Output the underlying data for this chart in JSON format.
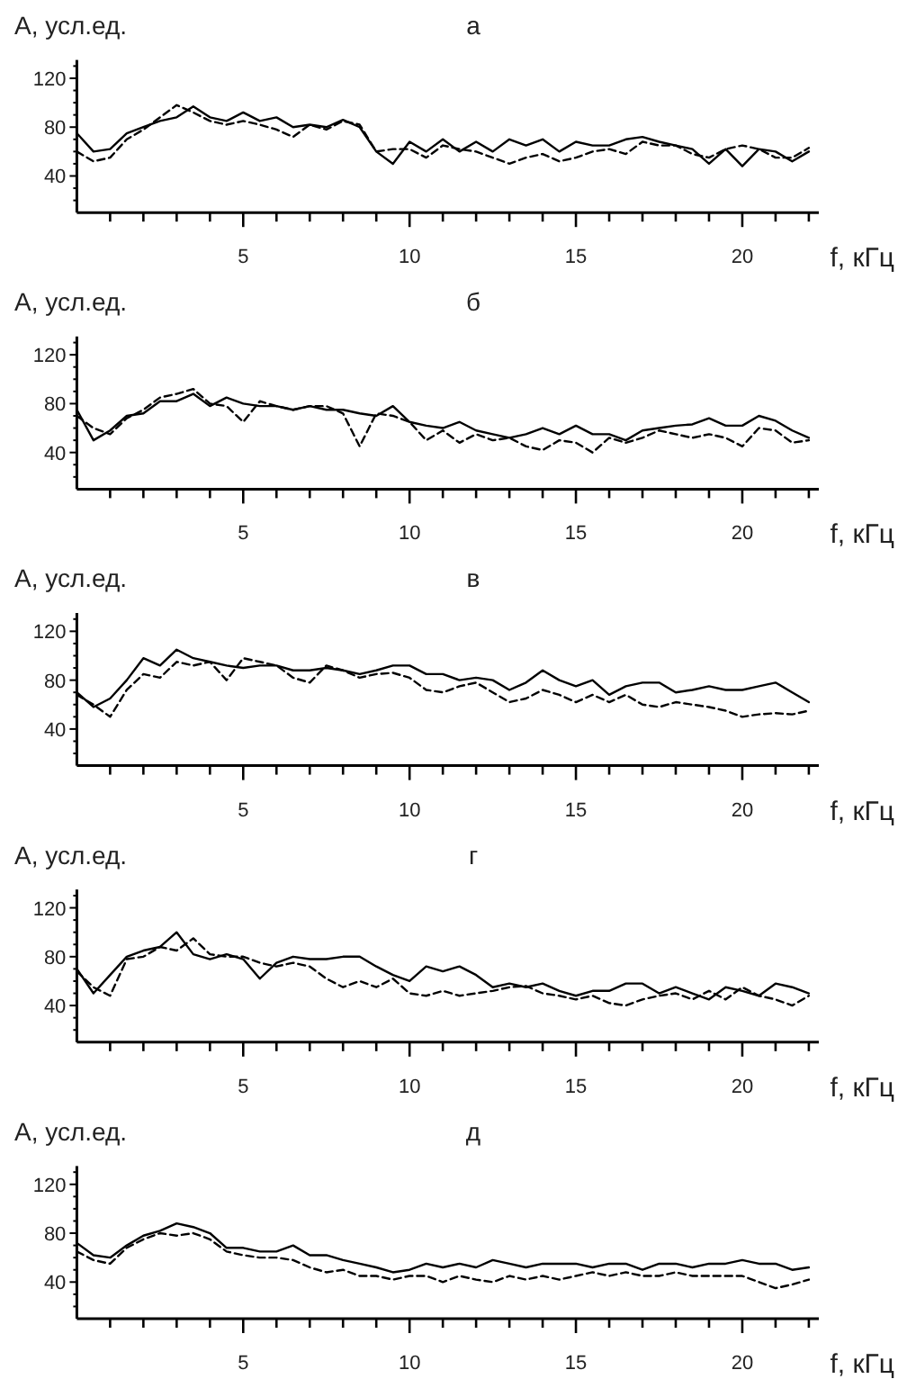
{
  "chart_data": [
    {
      "type": "line",
      "title": "а",
      "xlabel": "f, кГц",
      "ylabel": "A, усл.ед.",
      "xlim": [
        0,
        22.3
      ],
      "ylim": [
        10,
        135
      ],
      "xticks": [
        {
          "value": 1,
          "label": null
        },
        {
          "value": 2,
          "label": null
        },
        {
          "value": 3,
          "label": null
        },
        {
          "value": 4,
          "label": null
        },
        5,
        {
          "value": 6,
          "label": null
        },
        {
          "value": 7,
          "label": null
        },
        {
          "value": 8,
          "label": null
        },
        {
          "value": 9,
          "label": null
        },
        10,
        {
          "value": 11,
          "label": null
        },
        {
          "value": 12,
          "label": null
        },
        {
          "value": 13,
          "label": null
        },
        {
          "value": 14,
          "label": null
        },
        15,
        {
          "value": 16,
          "label": null
        },
        {
          "value": 17,
          "label": null
        },
        {
          "value": 18,
          "label": null
        },
        {
          "value": 19,
          "label": null
        },
        20,
        {
          "value": 21,
          "label": null
        },
        {
          "value": 22,
          "label": null
        }
      ],
      "yticks": [
        {
          "value": 20,
          "label": null
        },
        {
          "value": 30,
          "label": null
        },
        40,
        {
          "value": 50,
          "label": null
        },
        {
          "value": 60,
          "label": null
        },
        {
          "value": 70,
          "label": null
        },
        80,
        {
          "value": 90,
          "label": null
        },
        {
          "value": 100,
          "label": null
        },
        {
          "value": 110,
          "label": null
        },
        120,
        {
          "value": 130,
          "label": null
        }
      ],
      "x": [
        0,
        0.5,
        1,
        1.5,
        2,
        2.5,
        3,
        3.5,
        4,
        4.5,
        5,
        5.5,
        6,
        6.5,
        7,
        7.5,
        8,
        8.5,
        9,
        9.5,
        10,
        10.5,
        11,
        11.5,
        12,
        12.5,
        13,
        13.5,
        14,
        14.5,
        15,
        15.5,
        16,
        16.5,
        17,
        17.5,
        18,
        18.5,
        19,
        19.5,
        20,
        20.5,
        21,
        21.5,
        22
      ],
      "series": [
        {
          "color": "#000000",
          "line_style": "solid",
          "values": [
            75,
            60,
            62,
            75,
            80,
            85,
            88,
            97,
            88,
            85,
            92,
            85,
            88,
            80,
            82,
            80,
            86,
            80,
            60,
            50,
            68,
            60,
            70,
            60,
            68,
            60,
            70,
            65,
            70,
            60,
            68,
            65,
            65,
            70,
            72,
            68,
            65,
            62,
            50,
            62,
            48,
            62,
            60,
            52,
            60
          ]
        },
        {
          "color": "#000000",
          "line_style": "dashed",
          "values": [
            60,
            52,
            55,
            70,
            78,
            88,
            98,
            92,
            85,
            82,
            85,
            82,
            78,
            72,
            82,
            78,
            85,
            82,
            60,
            62,
            62,
            55,
            65,
            62,
            60,
            55,
            50,
            55,
            58,
            52,
            55,
            60,
            62,
            58,
            68,
            65,
            65,
            58,
            55,
            62,
            65,
            62,
            55,
            55,
            63
          ]
        }
      ]
    },
    {
      "type": "line",
      "title": "б",
      "xlabel": "f, кГц",
      "ylabel": "A, усл.ед.",
      "xlim": [
        0,
        22.3
      ],
      "ylim": [
        10,
        135
      ],
      "xticks": [
        {
          "value": 1,
          "label": null
        },
        {
          "value": 2,
          "label": null
        },
        {
          "value": 3,
          "label": null
        },
        {
          "value": 4,
          "label": null
        },
        5,
        {
          "value": 6,
          "label": null
        },
        {
          "value": 7,
          "label": null
        },
        {
          "value": 8,
          "label": null
        },
        {
          "value": 9,
          "label": null
        },
        10,
        {
          "value": 11,
          "label": null
        },
        {
          "value": 12,
          "label": null
        },
        {
          "value": 13,
          "label": null
        },
        {
          "value": 14,
          "label": null
        },
        15,
        {
          "value": 16,
          "label": null
        },
        {
          "value": 17,
          "label": null
        },
        {
          "value": 18,
          "label": null
        },
        {
          "value": 19,
          "label": null
        },
        20,
        {
          "value": 21,
          "label": null
        },
        {
          "value": 22,
          "label": null
        }
      ],
      "yticks": [
        {
          "value": 20,
          "label": null
        },
        {
          "value": 30,
          "label": null
        },
        40,
        {
          "value": 50,
          "label": null
        },
        {
          "value": 60,
          "label": null
        },
        {
          "value": 70,
          "label": null
        },
        80,
        {
          "value": 90,
          "label": null
        },
        {
          "value": 100,
          "label": null
        },
        {
          "value": 110,
          "label": null
        },
        120,
        {
          "value": 130,
          "label": null
        }
      ],
      "x": [
        0,
        0.5,
        1,
        1.5,
        2,
        2.5,
        3,
        3.5,
        4,
        4.5,
        5,
        5.5,
        6,
        6.5,
        7,
        7.5,
        8,
        8.5,
        9,
        9.5,
        10,
        10.5,
        11,
        11.5,
        12,
        12.5,
        13,
        13.5,
        14,
        14.5,
        15,
        15.5,
        16,
        16.5,
        17,
        17.5,
        18,
        18.5,
        19,
        19.5,
        20,
        20.5,
        21,
        21.5,
        22
      ],
      "series": [
        {
          "color": "#000000",
          "line_style": "solid",
          "values": [
            75,
            50,
            58,
            70,
            72,
            82,
            82,
            88,
            78,
            85,
            80,
            78,
            78,
            75,
            78,
            75,
            75,
            72,
            70,
            78,
            65,
            62,
            60,
            65,
            58,
            55,
            52,
            55,
            60,
            55,
            62,
            55,
            55,
            50,
            58,
            60,
            62,
            63,
            68,
            62,
            62,
            70,
            66,
            58,
            52
          ]
        },
        {
          "color": "#000000",
          "line_style": "dashed",
          "values": [
            70,
            60,
            55,
            68,
            75,
            85,
            88,
            92,
            80,
            78,
            65,
            82,
            78,
            75,
            78,
            78,
            72,
            45,
            72,
            70,
            65,
            50,
            58,
            48,
            55,
            50,
            52,
            45,
            42,
            50,
            48,
            40,
            52,
            48,
            52,
            58,
            55,
            52,
            55,
            52,
            45,
            60,
            58,
            48,
            50
          ]
        }
      ]
    },
    {
      "type": "line",
      "title": "в",
      "xlabel": "f, кГц",
      "ylabel": "A, усл.ед.",
      "xlim": [
        0,
        22.3
      ],
      "ylim": [
        10,
        135
      ],
      "xticks": [
        {
          "value": 1,
          "label": null
        },
        {
          "value": 2,
          "label": null
        },
        {
          "value": 3,
          "label": null
        },
        {
          "value": 4,
          "label": null
        },
        5,
        {
          "value": 6,
          "label": null
        },
        {
          "value": 7,
          "label": null
        },
        {
          "value": 8,
          "label": null
        },
        {
          "value": 9,
          "label": null
        },
        10,
        {
          "value": 11,
          "label": null
        },
        {
          "value": 12,
          "label": null
        },
        {
          "value": 13,
          "label": null
        },
        {
          "value": 14,
          "label": null
        },
        15,
        {
          "value": 16,
          "label": null
        },
        {
          "value": 17,
          "label": null
        },
        {
          "value": 18,
          "label": null
        },
        {
          "value": 19,
          "label": null
        },
        20,
        {
          "value": 21,
          "label": null
        },
        {
          "value": 22,
          "label": null
        }
      ],
      "yticks": [
        {
          "value": 20,
          "label": null
        },
        {
          "value": 30,
          "label": null
        },
        40,
        {
          "value": 50,
          "label": null
        },
        {
          "value": 60,
          "label": null
        },
        {
          "value": 70,
          "label": null
        },
        80,
        {
          "value": 90,
          "label": null
        },
        {
          "value": 100,
          "label": null
        },
        {
          "value": 110,
          "label": null
        },
        120,
        {
          "value": 130,
          "label": null
        }
      ],
      "x": [
        0,
        0.5,
        1,
        1.5,
        2,
        2.5,
        3,
        3.5,
        4,
        4.5,
        5,
        5.5,
        6,
        6.5,
        7,
        7.5,
        8,
        8.5,
        9,
        9.5,
        10,
        10.5,
        11,
        11.5,
        12,
        12.5,
        13,
        13.5,
        14,
        14.5,
        15,
        15.5,
        16,
        16.5,
        17,
        17.5,
        18,
        18.5,
        19,
        19.5,
        20,
        20.5,
        21,
        21.5,
        22
      ],
      "series": [
        {
          "color": "#000000",
          "line_style": "solid",
          "values": [
            70,
            58,
            65,
            80,
            98,
            92,
            105,
            98,
            95,
            92,
            90,
            92,
            92,
            88,
            88,
            90,
            88,
            85,
            88,
            92,
            92,
            85,
            85,
            80,
            82,
            80,
            72,
            78,
            88,
            80,
            75,
            80,
            68,
            75,
            78,
            78,
            70,
            72,
            75,
            72,
            72,
            75,
            78,
            70,
            62
          ]
        },
        {
          "color": "#000000",
          "line_style": "dashed",
          "values": [
            68,
            60,
            50,
            72,
            85,
            82,
            95,
            92,
            95,
            80,
            98,
            95,
            92,
            82,
            78,
            92,
            88,
            82,
            85,
            86,
            82,
            72,
            70,
            75,
            78,
            70,
            62,
            65,
            72,
            68,
            62,
            68,
            62,
            68,
            60,
            58,
            62,
            60,
            58,
            55,
            50,
            52,
            53,
            52,
            55
          ]
        }
      ]
    },
    {
      "type": "line",
      "title": "г",
      "xlabel": "f, кГц",
      "ylabel": "A, усл.ед.",
      "xlim": [
        0,
        22.3
      ],
      "ylim": [
        10,
        135
      ],
      "xticks": [
        {
          "value": 1,
          "label": null
        },
        {
          "value": 2,
          "label": null
        },
        {
          "value": 3,
          "label": null
        },
        {
          "value": 4,
          "label": null
        },
        5,
        {
          "value": 6,
          "label": null
        },
        {
          "value": 7,
          "label": null
        },
        {
          "value": 8,
          "label": null
        },
        {
          "value": 9,
          "label": null
        },
        10,
        {
          "value": 11,
          "label": null
        },
        {
          "value": 12,
          "label": null
        },
        {
          "value": 13,
          "label": null
        },
        {
          "value": 14,
          "label": null
        },
        15,
        {
          "value": 16,
          "label": null
        },
        {
          "value": 17,
          "label": null
        },
        {
          "value": 18,
          "label": null
        },
        {
          "value": 19,
          "label": null
        },
        20,
        {
          "value": 21,
          "label": null
        },
        {
          "value": 22,
          "label": null
        }
      ],
      "yticks": [
        {
          "value": 20,
          "label": null
        },
        {
          "value": 30,
          "label": null
        },
        40,
        {
          "value": 50,
          "label": null
        },
        {
          "value": 60,
          "label": null
        },
        {
          "value": 70,
          "label": null
        },
        80,
        {
          "value": 90,
          "label": null
        },
        {
          "value": 100,
          "label": null
        },
        {
          "value": 110,
          "label": null
        },
        120,
        {
          "value": 130,
          "label": null
        }
      ],
      "x": [
        0,
        0.5,
        1,
        1.5,
        2,
        2.5,
        3,
        3.5,
        4,
        4.5,
        5,
        5.5,
        6,
        6.5,
        7,
        7.5,
        8,
        8.5,
        9,
        9.5,
        10,
        10.5,
        11,
        11.5,
        12,
        12.5,
        13,
        13.5,
        14,
        14.5,
        15,
        15.5,
        16,
        16.5,
        17,
        17.5,
        18,
        18.5,
        19,
        19.5,
        20,
        20.5,
        21,
        21.5,
        22
      ],
      "series": [
        {
          "color": "#000000",
          "line_style": "solid",
          "values": [
            70,
            50,
            65,
            80,
            85,
            88,
            100,
            82,
            78,
            82,
            78,
            62,
            75,
            80,
            78,
            78,
            80,
            80,
            72,
            65,
            60,
            72,
            68,
            72,
            65,
            55,
            58,
            55,
            58,
            52,
            48,
            52,
            52,
            58,
            58,
            50,
            55,
            50,
            45,
            55,
            52,
            48,
            58,
            55,
            50
          ]
        },
        {
          "color": "#000000",
          "line_style": "dashed",
          "values": [
            68,
            55,
            48,
            78,
            80,
            88,
            85,
            95,
            82,
            80,
            80,
            75,
            72,
            75,
            72,
            62,
            55,
            60,
            55,
            62,
            50,
            48,
            52,
            48,
            50,
            52,
            55,
            56,
            50,
            48,
            45,
            48,
            42,
            40,
            45,
            48,
            50,
            45,
            52,
            45,
            55,
            48,
            45,
            40,
            48
          ]
        }
      ]
    },
    {
      "type": "line",
      "title": "д",
      "xlabel": "f, кГц",
      "ylabel": "A, усл.ед.",
      "xlim": [
        0,
        22.3
      ],
      "ylim": [
        10,
        135
      ],
      "xticks": [
        {
          "value": 1,
          "label": null
        },
        {
          "value": 2,
          "label": null
        },
        {
          "value": 3,
          "label": null
        },
        {
          "value": 4,
          "label": null
        },
        5,
        {
          "value": 6,
          "label": null
        },
        {
          "value": 7,
          "label": null
        },
        {
          "value": 8,
          "label": null
        },
        {
          "value": 9,
          "label": null
        },
        10,
        {
          "value": 11,
          "label": null
        },
        {
          "value": 12,
          "label": null
        },
        {
          "value": 13,
          "label": null
        },
        {
          "value": 14,
          "label": null
        },
        15,
        {
          "value": 16,
          "label": null
        },
        {
          "value": 17,
          "label": null
        },
        {
          "value": 18,
          "label": null
        },
        {
          "value": 19,
          "label": null
        },
        20,
        {
          "value": 21,
          "label": null
        },
        {
          "value": 22,
          "label": null
        }
      ],
      "yticks": [
        {
          "value": 20,
          "label": null
        },
        {
          "value": 30,
          "label": null
        },
        40,
        {
          "value": 50,
          "label": null
        },
        {
          "value": 60,
          "label": null
        },
        {
          "value": 70,
          "label": null
        },
        80,
        {
          "value": 90,
          "label": null
        },
        {
          "value": 100,
          "label": null
        },
        {
          "value": 110,
          "label": null
        },
        120,
        {
          "value": 130,
          "label": null
        }
      ],
      "x": [
        0,
        0.5,
        1,
        1.5,
        2,
        2.5,
        3,
        3.5,
        4,
        4.5,
        5,
        5.5,
        6,
        6.5,
        7,
        7.5,
        8,
        8.5,
        9,
        9.5,
        10,
        10.5,
        11,
        11.5,
        12,
        12.5,
        13,
        13.5,
        14,
        14.5,
        15,
        15.5,
        16,
        16.5,
        17,
        17.5,
        18,
        18.5,
        19,
        19.5,
        20,
        20.5,
        21,
        21.5,
        22
      ],
      "series": [
        {
          "color": "#000000",
          "line_style": "solid",
          "values": [
            72,
            62,
            60,
            70,
            78,
            82,
            88,
            85,
            80,
            68,
            68,
            65,
            65,
            70,
            62,
            62,
            58,
            55,
            52,
            48,
            50,
            55,
            52,
            55,
            52,
            58,
            55,
            52,
            55,
            55,
            55,
            52,
            55,
            55,
            50,
            55,
            55,
            52,
            55,
            55,
            58,
            55,
            55,
            50,
            52
          ]
        },
        {
          "color": "#000000",
          "line_style": "dashed",
          "values": [
            65,
            58,
            55,
            68,
            75,
            80,
            78,
            80,
            75,
            65,
            62,
            60,
            60,
            58,
            52,
            48,
            50,
            45,
            45,
            42,
            45,
            45,
            40,
            45,
            42,
            40,
            45,
            42,
            45,
            42,
            45,
            48,
            45,
            48,
            45,
            45,
            48,
            45,
            45,
            45,
            45,
            40,
            35,
            38,
            42
          ]
        }
      ]
    }
  ]
}
